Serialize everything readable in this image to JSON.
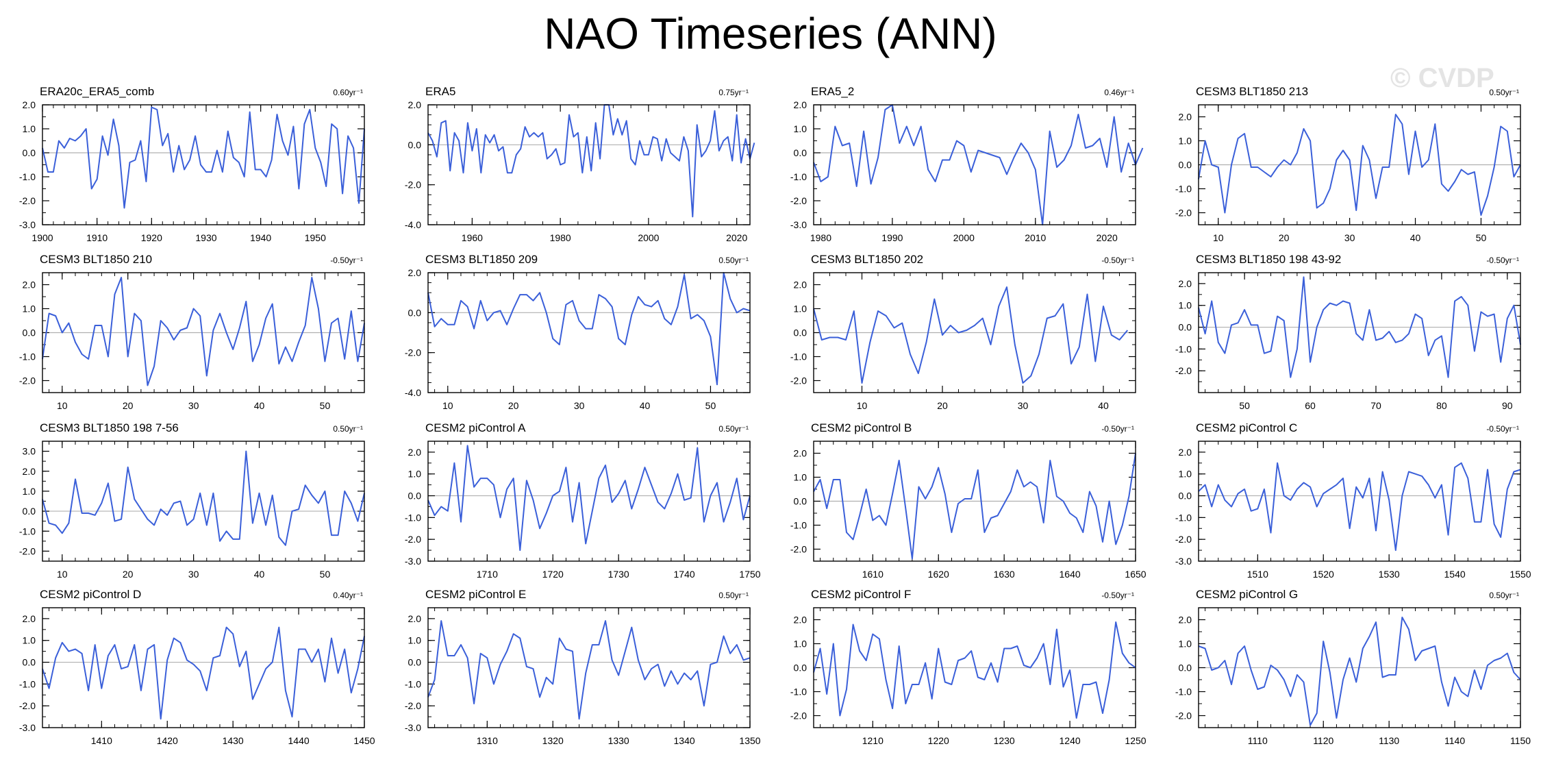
{
  "title": "NAO Timeseries (ANN)",
  "watermark": "© CVDP",
  "colors": {
    "line": "#3a5fd9",
    "secondary_line": "#808080",
    "zero_line": "#b0b0b0",
    "axis": "#000000"
  },
  "chart_data": [
    {
      "type": "line",
      "title": "ERA20c_ERA5_comb",
      "trend": "0.60yr⁻¹",
      "xlim": [
        1900,
        1959
      ],
      "xticks": [
        1900,
        1910,
        1920,
        1930,
        1940,
        1950
      ],
      "ylim": [
        -3,
        2
      ],
      "yticks": [
        -3,
        -2,
        -1,
        0,
        1,
        2
      ],
      "x_start": 1900,
      "values": [
        0.2,
        -0.8,
        -0.8,
        0.5,
        0.2,
        0.6,
        0.5,
        0.7,
        1.0,
        -1.5,
        -1.1,
        0.7,
        -0.1,
        1.4,
        0.3,
        -2.3,
        -0.4,
        -0.3,
        0.5,
        -1.2,
        1.9,
        1.8,
        0.3,
        0.8,
        -0.8,
        0.3,
        -0.7,
        -0.3,
        0.7,
        -0.5,
        -0.8,
        -0.8,
        0.1,
        -0.8,
        0.9,
        -0.2,
        -0.4,
        -1.0,
        1.7,
        -0.7,
        -0.7,
        -1.0,
        -0.3,
        1.6,
        0.5,
        -0.1,
        1.1,
        -1.5,
        1.2,
        1.8,
        0.2,
        -0.4,
        -1.4,
        1.2,
        1.0,
        -1.7,
        0.7,
        0.2,
        -2.1,
        1.0
      ]
    },
    {
      "type": "line",
      "title": "ERA5",
      "trend": "0.75yr⁻¹",
      "xlim": [
        1950,
        2023
      ],
      "xticks": [
        1960,
        1980,
        2000,
        2020
      ],
      "ylim": [
        -4,
        2
      ],
      "yticks": [
        -4,
        -2,
        0,
        2
      ],
      "x_start": 1950,
      "values": [
        0.6,
        0.2,
        -0.6,
        1.1,
        1.2,
        -1.3,
        0.6,
        0.2,
        -1.4,
        1.1,
        -0.3,
        0.8,
        -1.4,
        0.5,
        0.1,
        0.5,
        -0.3,
        -0.1,
        -1.4,
        -1.4,
        -0.5,
        -0.2,
        0.9,
        0.4,
        0.6,
        0.4,
        0.6,
        -0.7,
        -0.5,
        -0.2,
        -1.0,
        -0.9,
        1.5,
        0.4,
        0.6,
        -1.4,
        0.4,
        -1.3,
        1.1,
        -0.7,
        2.0,
        2.3,
        0.5,
        1.3,
        0.5,
        1.2,
        -0.7,
        -1.0,
        0.2,
        -0.5,
        -0.5,
        0.4,
        0.3,
        -0.8,
        0.3,
        -0.4,
        -0.6,
        -0.8,
        0.4,
        -0.3,
        -3.6,
        1.0,
        -0.6,
        -0.3,
        0.2,
        1.7,
        -0.3,
        0.2,
        0.4,
        -0.8,
        1.5,
        -0.9,
        0.3,
        -0.7,
        0.1
      ]
    },
    {
      "type": "line",
      "title": "ERA5_2",
      "trend": "0.46yr⁻¹",
      "xlim": [
        1979,
        2024
      ],
      "xticks": [
        1980,
        1990,
        2000,
        2010,
        2020
      ],
      "ylim": [
        -3,
        2
      ],
      "yticks": [
        -3,
        -2,
        -1,
        0,
        1,
        2
      ],
      "x_start": 1979,
      "values": [
        -0.4,
        -1.2,
        -1.0,
        1.1,
        0.3,
        0.4,
        -1.4,
        0.9,
        -1.3,
        -0.2,
        1.8,
        2.0,
        0.4,
        1.1,
        0.3,
        1.1,
        -0.7,
        -1.2,
        -0.3,
        -0.3,
        0.5,
        0.3,
        -0.8,
        0.1,
        0.0,
        -0.1,
        -0.2,
        -0.9,
        -0.2,
        0.4,
        0.0,
        -0.7,
        -3.3,
        0.9,
        -0.6,
        -0.3,
        0.3,
        1.6,
        0.2,
        0.3,
        0.6,
        -0.6,
        1.5,
        -0.8,
        0.4,
        -0.5,
        0.2
      ]
    },
    {
      "type": "line",
      "title": "CESM3 BLT1850 213",
      "trend": "0.50yr⁻¹",
      "xlim": [
        7,
        56
      ],
      "xticks": [
        10,
        20,
        30,
        40,
        50
      ],
      "ylim": [
        -2.5,
        2.5
      ],
      "yticks": [
        -2,
        -1,
        0,
        1,
        2
      ],
      "x_start": 7,
      "values": [
        -0.6,
        1.0,
        0.0,
        -0.1,
        -2.0,
        0.0,
        1.1,
        1.3,
        -0.1,
        -0.1,
        -0.3,
        -0.5,
        -0.1,
        0.2,
        0.0,
        0.5,
        1.5,
        1.0,
        -1.8,
        -1.6,
        -1.0,
        0.2,
        0.6,
        0.2,
        -1.9,
        0.8,
        0.2,
        -1.4,
        -0.1,
        -0.1,
        2.1,
        1.7,
        -0.4,
        1.4,
        -0.1,
        0.2,
        1.7,
        -0.8,
        -1.1,
        -0.7,
        -0.2,
        -0.4,
        -0.3,
        -2.1,
        -1.3,
        -0.1,
        1.6,
        1.4,
        -0.5,
        0.0
      ]
    },
    {
      "type": "line",
      "title": "CESM3 BLT1850 210",
      "trend": "-0.50yr⁻¹",
      "xlim": [
        7,
        56
      ],
      "xticks": [
        10,
        20,
        30,
        40,
        50
      ],
      "ylim": [
        -2.5,
        2.5
      ],
      "yticks": [
        -2,
        -1,
        0,
        1,
        2
      ],
      "x_start": 7,
      "values": [
        -1.1,
        0.8,
        0.7,
        0.0,
        0.4,
        -0.4,
        -0.9,
        -1.1,
        0.3,
        0.3,
        -1.0,
        1.6,
        2.3,
        -1.0,
        0.8,
        0.5,
        -2.2,
        -1.4,
        0.5,
        0.2,
        -0.3,
        0.1,
        0.2,
        1.0,
        0.7,
        -1.8,
        0.1,
        0.8,
        0.0,
        -0.7,
        0.2,
        1.3,
        -1.2,
        -0.5,
        0.6,
        1.2,
        -1.3,
        -0.6,
        -1.2,
        -0.4,
        0.3,
        2.3,
        1.0,
        -1.2,
        0.4,
        0.6,
        -1.1,
        0.9,
        -1.2,
        0.4
      ]
    },
    {
      "type": "line",
      "title": "CESM3 BLT1850 209",
      "trend": "0.50yr⁻¹",
      "xlim": [
        7,
        56
      ],
      "xticks": [
        10,
        20,
        30,
        40,
        50
      ],
      "ylim": [
        -4,
        2
      ],
      "yticks": [
        -4,
        -2,
        0,
        2
      ],
      "x_start": 7,
      "values": [
        1.0,
        -0.7,
        -0.3,
        -0.6,
        -0.6,
        0.6,
        0.3,
        -0.8,
        0.6,
        -0.4,
        0.0,
        0.1,
        -0.6,
        0.2,
        0.9,
        0.9,
        0.6,
        1.0,
        0.0,
        -1.3,
        -1.6,
        0.4,
        0.6,
        -0.4,
        -0.8,
        -0.8,
        0.9,
        0.7,
        0.3,
        -1.3,
        -1.6,
        -0.1,
        0.8,
        0.4,
        0.3,
        0.6,
        -0.3,
        -0.6,
        0.3,
        1.9,
        -0.3,
        -0.1,
        -0.4,
        -1.2,
        -3.6,
        2.4,
        0.7,
        0.0,
        0.2,
        0.1
      ]
    },
    {
      "type": "line",
      "title": "CESM3 BLT1850 202",
      "trend": "-0.50yr⁻¹",
      "xlim": [
        4,
        44
      ],
      "xticks": [
        10,
        20,
        30,
        40
      ],
      "ylim": [
        -2.5,
        2.5
      ],
      "yticks": [
        -2,
        -1,
        0,
        1,
        2
      ],
      "x_start": 4,
      "values": [
        1.0,
        -0.3,
        -0.2,
        -0.2,
        -0.3,
        0.9,
        -2.1,
        -0.4,
        0.9,
        0.7,
        0.2,
        0.4,
        -0.9,
        -1.7,
        -0.4,
        1.4,
        -0.1,
        0.3,
        0.0,
        0.1,
        0.3,
        0.6,
        -0.5,
        1.1,
        1.9,
        -0.5,
        -2.1,
        -1.8,
        -0.9,
        0.6,
        0.7,
        1.2,
        -1.3,
        -0.6,
        1.6,
        -1.2,
        1.1,
        -0.1,
        -0.3,
        0.1
      ]
    },
    {
      "type": "line",
      "title": "CESM3 BLT1850 198 43-92",
      "trend": "-0.50yr⁻¹",
      "xlim": [
        43,
        92
      ],
      "xticks": [
        50,
        60,
        70,
        80,
        90
      ],
      "ylim": [
        -3,
        2.5
      ],
      "yticks": [
        -2,
        -1,
        0,
        1,
        2
      ],
      "x_start": 43,
      "values": [
        0.9,
        -0.3,
        1.2,
        -0.7,
        -1.2,
        0.1,
        0.2,
        0.8,
        0.1,
        0.1,
        -1.2,
        -1.1,
        0.5,
        0.3,
        -2.3,
        -1.0,
        2.3,
        -1.6,
        0.0,
        0.8,
        1.1,
        1.0,
        1.2,
        1.1,
        -0.3,
        -0.6,
        0.8,
        -0.6,
        -0.5,
        -0.2,
        -0.7,
        -0.6,
        -0.3,
        0.6,
        0.4,
        -1.3,
        -0.6,
        -0.4,
        -2.3,
        1.2,
        1.4,
        1.0,
        -1.1,
        0.7,
        0.5,
        0.6,
        -1.6,
        0.4,
        1.0,
        -0.8
      ]
    },
    {
      "type": "line",
      "title": "CESM3 BLT1850 198 7-56",
      "trend": "0.50yr⁻¹",
      "xlim": [
        7,
        56
      ],
      "xticks": [
        10,
        20,
        30,
        40,
        50
      ],
      "ylim": [
        -2.5,
        3.5
      ],
      "yticks": [
        -2,
        -1,
        0,
        1,
        2,
        3
      ],
      "x_start": 7,
      "values": [
        0.6,
        -0.6,
        -0.7,
        -1.1,
        -0.6,
        1.6,
        -0.1,
        -0.1,
        -0.2,
        0.4,
        1.4,
        -0.5,
        -0.4,
        2.2,
        0.6,
        0.1,
        -0.4,
        -0.7,
        0.1,
        -0.2,
        0.4,
        0.5,
        -0.7,
        -0.4,
        0.9,
        -0.7,
        0.9,
        -1.5,
        -1.0,
        -1.4,
        -1.4,
        3.0,
        -0.6,
        0.9,
        -0.7,
        0.8,
        -1.3,
        -1.7,
        0.0,
        0.1,
        1.3,
        0.8,
        0.4,
        1.0,
        -1.2,
        -1.2,
        1.0,
        0.4,
        -0.5,
        0.9
      ]
    },
    {
      "type": "line",
      "title": "CESM2 piControl A",
      "trend": "0.50yr⁻¹",
      "xlim": [
        1701,
        1750
      ],
      "xticks": [
        1710,
        1720,
        1730,
        1740,
        1750
      ],
      "ylim": [
        -3,
        2.5
      ],
      "yticks": [
        -3,
        -2,
        -1,
        0,
        1,
        2
      ],
      "x_start": 1701,
      "values": [
        -0.2,
        -0.9,
        -0.5,
        -0.7,
        1.5,
        -1.2,
        2.3,
        0.4,
        0.8,
        0.8,
        0.5,
        -1.0,
        0.3,
        0.8,
        -2.5,
        0.7,
        -0.2,
        -1.5,
        -0.8,
        0.0,
        0.2,
        1.3,
        -1.2,
        0.6,
        -2.2,
        -0.7,
        0.8,
        1.4,
        -0.3,
        0.1,
        0.7,
        -0.6,
        0.3,
        1.3,
        0.5,
        -0.3,
        -0.6,
        0.1,
        1.0,
        -0.2,
        -0.1,
        2.2,
        -1.2,
        0.0,
        0.6,
        -1.2,
        -0.3,
        0.8,
        -1.1,
        0.0
      ]
    },
    {
      "type": "line",
      "title": "CESM2 piControl B",
      "trend": "-0.50yr⁻¹",
      "xlim": [
        1601,
        1650
      ],
      "xticks": [
        1610,
        1620,
        1630,
        1640,
        1650
      ],
      "ylim": [
        -2.5,
        2.5
      ],
      "yticks": [
        -2,
        -1,
        0,
        1,
        2
      ],
      "x_start": 1601,
      "values": [
        0.4,
        0.9,
        -0.3,
        0.9,
        0.9,
        -1.3,
        -1.6,
        -0.6,
        0.5,
        -0.8,
        -0.6,
        -1.0,
        0.3,
        1.7,
        -0.3,
        -2.4,
        0.6,
        0.1,
        0.6,
        1.4,
        0.3,
        -1.3,
        -0.1,
        0.1,
        0.1,
        1.3,
        -1.3,
        -0.7,
        -0.6,
        -0.1,
        0.4,
        1.3,
        0.6,
        0.8,
        0.6,
        -0.9,
        1.7,
        0.2,
        0.0,
        -0.5,
        -0.7,
        -1.3,
        0.4,
        -0.2,
        -1.7,
        0.0,
        -1.8,
        -1.0,
        0.2,
        2.0
      ]
    },
    {
      "type": "line",
      "title": "CESM2 piControl C",
      "trend": "-0.50yr⁻¹",
      "xlim": [
        1501,
        1550
      ],
      "xticks": [
        1510,
        1520,
        1530,
        1540,
        1550
      ],
      "ylim": [
        -3,
        2.5
      ],
      "yticks": [
        -3,
        -2,
        -1,
        0,
        1,
        2
      ],
      "x_start": 1501,
      "values": [
        0.2,
        0.5,
        -0.5,
        0.5,
        -0.2,
        -0.5,
        0.1,
        0.3,
        -0.7,
        -0.6,
        0.3,
        -1.7,
        1.5,
        0.0,
        -0.2,
        0.3,
        0.6,
        0.4,
        -0.5,
        0.1,
        0.3,
        0.5,
        0.8,
        -1.5,
        0.4,
        -0.1,
        0.8,
        -1.6,
        1.1,
        -0.2,
        -2.5,
        0.0,
        1.1,
        1.0,
        0.9,
        0.5,
        -0.1,
        0.5,
        -1.8,
        1.3,
        1.5,
        0.8,
        -1.2,
        -1.2,
        1.2,
        -1.3,
        -1.9,
        0.3,
        1.1,
        1.2
      ]
    },
    {
      "type": "line",
      "title": "CESM2 piControl D",
      "trend": "0.40yr⁻¹",
      "xlim": [
        1401,
        1450
      ],
      "xticks": [
        1410,
        1420,
        1430,
        1440,
        1450
      ],
      "ylim": [
        -3,
        2.5
      ],
      "yticks": [
        -3,
        -2,
        -1,
        0,
        1,
        2
      ],
      "x_start": 1401,
      "values": [
        -0.3,
        -1.2,
        0.2,
        0.9,
        0.5,
        0.6,
        0.4,
        -1.3,
        0.8,
        -1.2,
        0.3,
        0.8,
        -0.3,
        -0.2,
        0.8,
        -1.3,
        0.6,
        0.8,
        -2.6,
        0.1,
        1.1,
        0.9,
        0.1,
        -0.1,
        -0.4,
        -1.3,
        0.2,
        0.3,
        1.6,
        1.3,
        -0.2,
        0.5,
        -1.7,
        -1.0,
        -0.3,
        0.0,
        1.6,
        -1.3,
        -2.5,
        0.6,
        0.6,
        0.0,
        0.6,
        -0.9,
        1.1,
        -0.5,
        0.6,
        -1.4,
        -0.3,
        1.2
      ]
    },
    {
      "type": "line",
      "title": "CESM2 piControl E",
      "trend": "0.50yr⁻¹",
      "xlim": [
        1301,
        1350
      ],
      "xticks": [
        1310,
        1320,
        1330,
        1340,
        1350
      ],
      "ylim": [
        -3,
        2.5
      ],
      "yticks": [
        -3,
        -2,
        -1,
        0,
        1,
        2
      ],
      "x_start": 1301,
      "values": [
        -1.6,
        -0.8,
        1.9,
        0.3,
        0.3,
        0.8,
        0.2,
        -1.9,
        0.4,
        0.2,
        -1.0,
        -0.1,
        0.5,
        1.3,
        1.1,
        -0.2,
        -0.3,
        -1.6,
        -0.7,
        -1.0,
        1.1,
        0.6,
        0.5,
        -2.6,
        -0.5,
        0.8,
        0.8,
        1.9,
        0.1,
        -0.6,
        0.5,
        1.6,
        0.1,
        -0.8,
        -0.3,
        -0.1,
        -1.1,
        -0.4,
        -1.0,
        -0.5,
        -0.8,
        -0.4,
        -2.0,
        -0.1,
        0.0,
        1.2,
        0.4,
        0.8,
        0.1,
        0.2
      ]
    },
    {
      "type": "line",
      "title": "CESM2 piControl F",
      "trend": "-0.50yr⁻¹",
      "xlim": [
        1201,
        1250
      ],
      "xticks": [
        1210,
        1220,
        1230,
        1240,
        1250
      ],
      "ylim": [
        -2.5,
        2.5
      ],
      "yticks": [
        -2,
        -1,
        0,
        1,
        2
      ],
      "x_start": 1201,
      "values": [
        -0.2,
        0.8,
        -1.1,
        1.0,
        -2.0,
        -0.9,
        1.8,
        0.7,
        0.3,
        1.4,
        1.2,
        -0.5,
        -1.7,
        0.9,
        -1.5,
        -0.7,
        -0.7,
        0.2,
        -1.3,
        0.8,
        -0.6,
        -0.7,
        0.3,
        0.4,
        0.7,
        -0.4,
        -0.5,
        0.2,
        -0.6,
        0.8,
        0.8,
        0.9,
        0.1,
        0.0,
        0.4,
        1.0,
        -0.7,
        1.6,
        -0.8,
        -0.1,
        -2.1,
        -0.7,
        -0.7,
        -0.6,
        -1.9,
        -0.5,
        1.9,
        0.6,
        0.2,
        0.0
      ]
    },
    {
      "type": "line",
      "title": "CESM2 piControl G",
      "trend": "0.50yr⁻¹",
      "xlim": [
        1101,
        1150
      ],
      "xticks": [
        1110,
        1120,
        1130,
        1140,
        1150
      ],
      "ylim": [
        -2.5,
        2.5
      ],
      "yticks": [
        -2,
        -1,
        0,
        1,
        2
      ],
      "x_start": 1101,
      "values": [
        0.9,
        0.8,
        -0.1,
        0.0,
        0.3,
        -0.7,
        0.6,
        0.9,
        -0.1,
        -0.9,
        -0.8,
        0.1,
        -0.1,
        -0.5,
        -1.2,
        -0.3,
        -0.6,
        -2.4,
        -1.9,
        1.1,
        -0.2,
        -2.1,
        -0.5,
        0.4,
        -0.6,
        0.8,
        1.3,
        1.9,
        -0.4,
        -0.3,
        -0.3,
        2.1,
        1.6,
        0.3,
        0.7,
        0.8,
        0.9,
        -0.6,
        -1.6,
        -0.4,
        -1.0,
        -1.2,
        -0.1,
        -0.9,
        0.1,
        0.3,
        0.4,
        0.6,
        -0.2,
        -0.5
      ]
    }
  ]
}
